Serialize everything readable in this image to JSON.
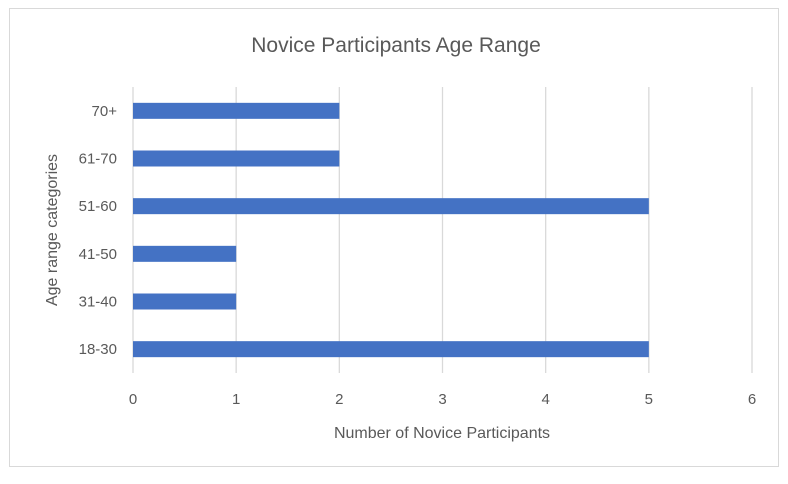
{
  "chart_data": {
    "type": "bar",
    "orientation": "horizontal",
    "title": "Novice Participants Age Range",
    "xlabel": "Number of Novice Participants",
    "ylabel": "Age range categories",
    "categories": [
      "18-30",
      "31-40",
      "41-50",
      "51-60",
      "61-70",
      "70+"
    ],
    "values": [
      5,
      1,
      1,
      5,
      2,
      2
    ],
    "xlim": [
      0,
      6
    ],
    "xticks": [
      "0",
      "1",
      "2",
      "3",
      "4",
      "5",
      "6"
    ],
    "grid": "vertical",
    "legend": "none",
    "bar_color": "#4472c4",
    "grid_color": "#d9d9d9"
  }
}
